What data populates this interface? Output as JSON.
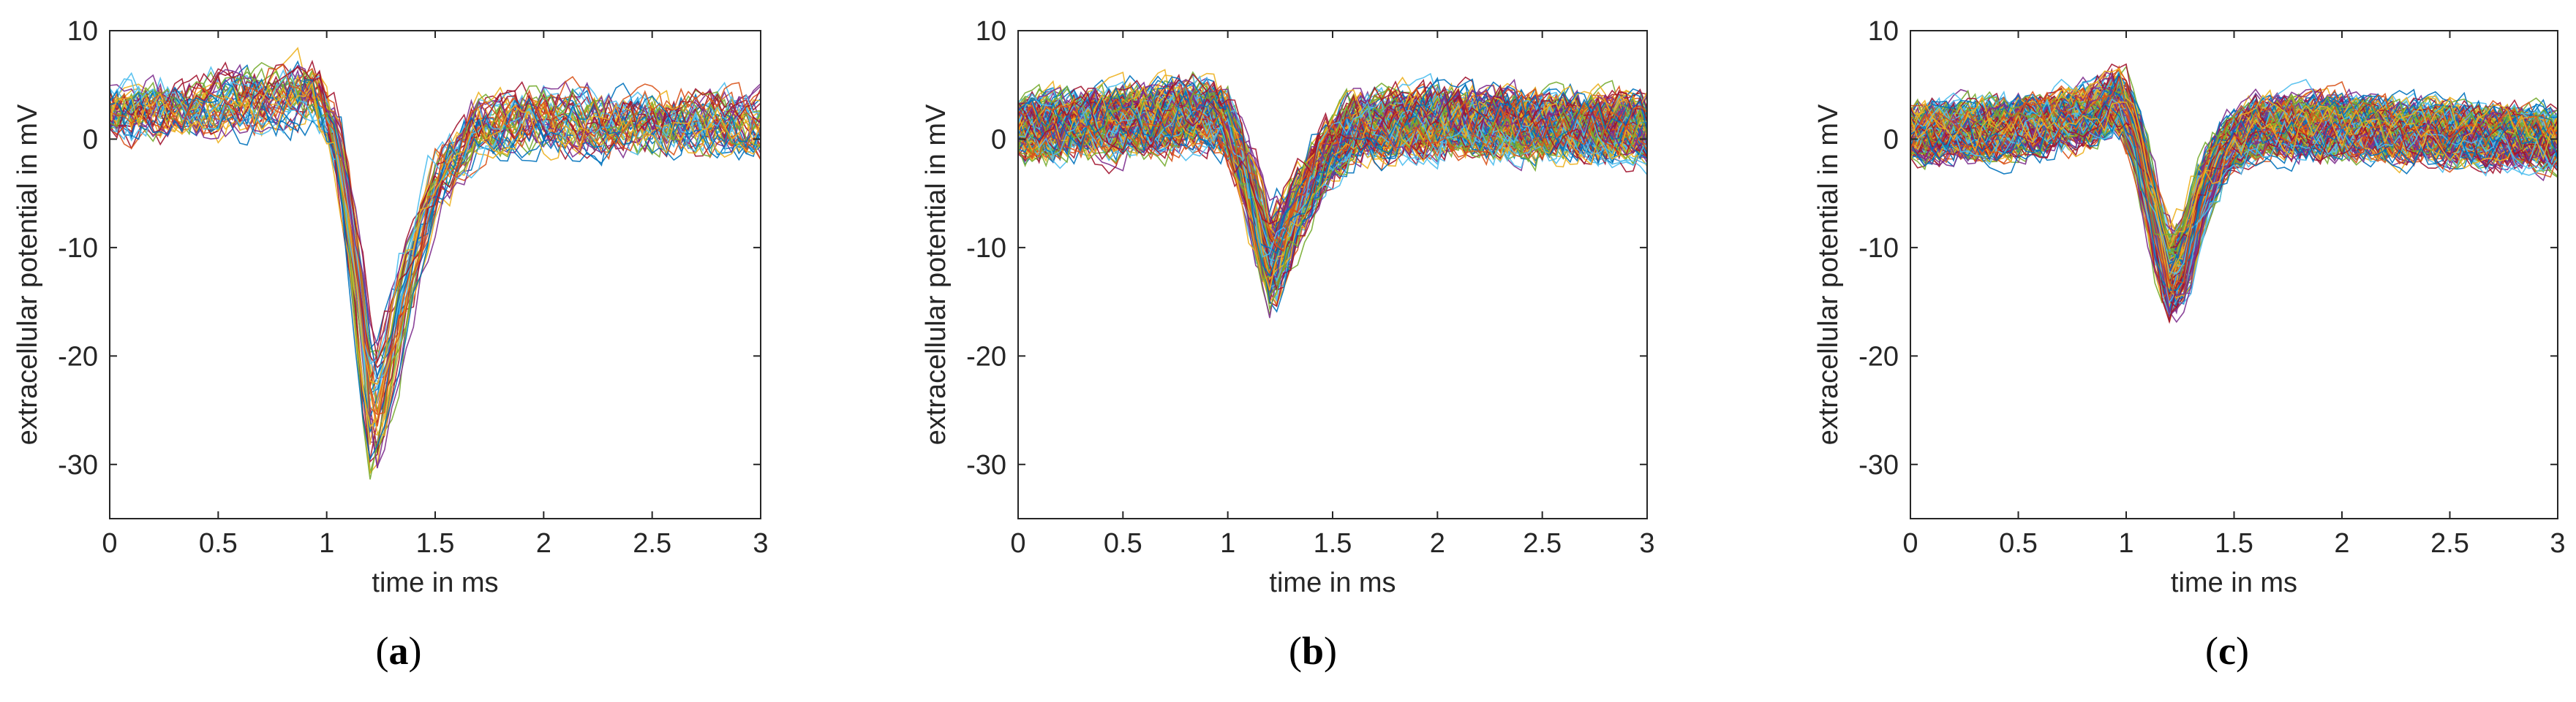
{
  "figure": {
    "captions": [
      {
        "open": "(",
        "letter": "a",
        "close": ")"
      },
      {
        "open": "(",
        "letter": "b",
        "close": ")"
      },
      {
        "open": "(",
        "letter": "c",
        "close": ")"
      }
    ]
  },
  "chart_data": [
    {
      "type": "line",
      "panel": "a",
      "xlabel": "time in ms",
      "ylabel": "extracellular potential in mV",
      "xlim": [
        0,
        3
      ],
      "ylim": [
        -35,
        10
      ],
      "xticks": [
        0,
        0.5,
        1,
        1.5,
        2,
        2.5,
        3
      ],
      "xtick_labels": [
        "0",
        "0.5",
        "1",
        "1.5",
        "2",
        "2.5",
        "3"
      ],
      "yticks": [
        -30,
        -20,
        -10,
        0,
        10
      ],
      "ytick_labels": [
        "-30",
        "-20",
        "-10",
        "0",
        "10"
      ],
      "n_traces": 45,
      "waveform": {
        "x": [
          0,
          0.4,
          0.8,
          0.95,
          1.05,
          1.15,
          1.2,
          1.25,
          1.35,
          1.5,
          1.7,
          2.0,
          2.5,
          3.0
        ],
        "y": [
          2.5,
          3,
          4,
          4.5,
          0,
          -15,
          -26,
          -24,
          -15,
          -4,
          1,
          2,
          1.5,
          1.5
        ]
      },
      "noise_amplitude": 2.5
    },
    {
      "type": "line",
      "panel": "b",
      "xlabel": "time in ms",
      "ylabel": "extracellular potential in mV",
      "xlim": [
        0,
        3
      ],
      "ylim": [
        -35,
        10
      ],
      "xticks": [
        0,
        0.5,
        1,
        1.5,
        2,
        2.5,
        3
      ],
      "xtick_labels": [
        "0",
        "0.5",
        "1",
        "1.5",
        "2",
        "2.5",
        "3"
      ],
      "yticks": [
        -30,
        -20,
        -10,
        0,
        10
      ],
      "ytick_labels": [
        "-30",
        "-20",
        "-10",
        "0",
        "10"
      ],
      "n_traces": 170,
      "waveform": {
        "x": [
          0,
          0.5,
          0.9,
          1.0,
          1.1,
          1.2,
          1.3,
          1.45,
          1.6,
          1.8,
          2.2,
          3.0
        ],
        "y": [
          1,
          1.5,
          2.5,
          1.5,
          -4,
          -12,
          -8,
          -2,
          1,
          1.5,
          1.5,
          1
        ]
      },
      "noise_amplitude": 2.5
    },
    {
      "type": "line",
      "panel": "c",
      "xlabel": "time in ms",
      "ylabel": "extracellular potential in mV",
      "xlim": [
        0,
        3
      ],
      "ylim": [
        -35,
        10
      ],
      "xticks": [
        0,
        0.5,
        1,
        1.5,
        2,
        2.5,
        3
      ],
      "xtick_labels": [
        "0",
        "0.5",
        "1",
        "1.5",
        "2",
        "2.5",
        "3"
      ],
      "yticks": [
        -30,
        -20,
        -10,
        0,
        10
      ],
      "ytick_labels": [
        "-30",
        "-20",
        "-10",
        "0",
        "10"
      ],
      "n_traces": 220,
      "waveform": {
        "x": [
          0,
          0.5,
          0.85,
          0.97,
          1.05,
          1.15,
          1.2,
          1.27,
          1.35,
          1.45,
          1.6,
          2.0,
          2.5,
          3.0
        ],
        "y": [
          0.5,
          1,
          2,
          3.5,
          0,
          -9,
          -13,
          -11,
          -5,
          -1,
          1,
          1,
          0.5,
          0
        ]
      },
      "noise_amplitude": 2.2
    }
  ]
}
